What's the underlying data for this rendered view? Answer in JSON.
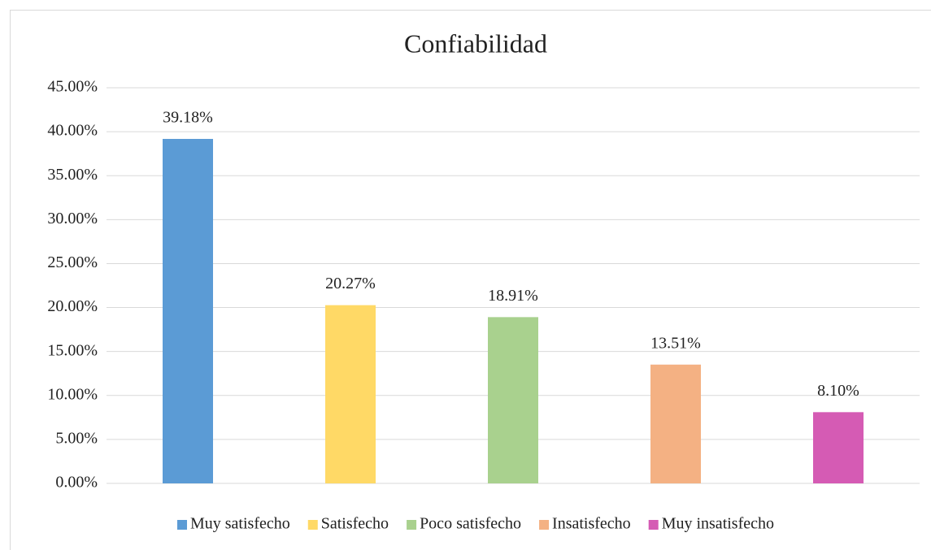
{
  "chart_data": {
    "type": "bar",
    "title": "Confiabilidad",
    "categories": [
      "Muy satisfecho",
      "Satisfecho",
      "Poco satisfecho",
      "Insatisfecho",
      "Muy insatisfecho"
    ],
    "values": [
      39.18,
      20.27,
      18.91,
      13.51,
      8.1
    ],
    "value_labels": [
      "39.18%",
      "20.27%",
      "18.91%",
      "13.51%",
      "8.10%"
    ],
    "colors": [
      "#5b9bd5",
      "#ffd966",
      "#a9d18e",
      "#f4b183",
      "#d55bb4"
    ],
    "ylim": [
      0,
      45
    ],
    "yticks": [
      {
        "value": 0,
        "label": "0.00%"
      },
      {
        "value": 5,
        "label": "5.00%"
      },
      {
        "value": 10,
        "label": "10.00%"
      },
      {
        "value": 15,
        "label": "15.00%"
      },
      {
        "value": 20,
        "label": "20.00%"
      },
      {
        "value": 25,
        "label": "25.00%"
      },
      {
        "value": 30,
        "label": "30.00%"
      },
      {
        "value": 35,
        "label": "35.00%"
      },
      {
        "value": 40,
        "label": "40.00%"
      },
      {
        "value": 45,
        "label": "45.00%"
      }
    ],
    "grid": true,
    "legend": "bottom"
  }
}
